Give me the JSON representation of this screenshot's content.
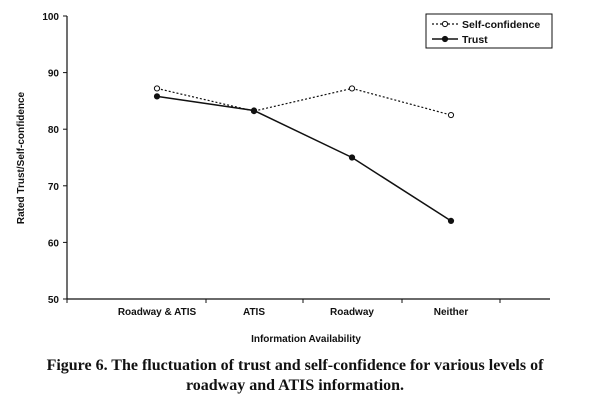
{
  "chart_data": {
    "type": "line",
    "categories": [
      "Roadway & ATIS",
      "ATIS",
      "Roadway",
      "Neither"
    ],
    "series": [
      {
        "name": "Self-confidence",
        "values": [
          87.2,
          83.2,
          87.2,
          82.5
        ],
        "style": "dotted",
        "marker": "open-circle",
        "color": "#111111"
      },
      {
        "name": "Trust",
        "values": [
          85.8,
          83.3,
          75.0,
          63.8
        ],
        "style": "solid",
        "marker": "filled-circle",
        "color": "#111111"
      }
    ],
    "xlabel": "Information Availability",
    "ylabel": "Rated Trust/Self-confidence",
    "ylim": [
      50,
      100
    ],
    "yticks": [
      50,
      60,
      70,
      80,
      90,
      100
    ],
    "grid": false,
    "legend_position": "top-right"
  },
  "caption": {
    "line1": "Figure 6.  The fluctuation of trust and self-confidence for various levels of",
    "line2": "roadway and ATIS information."
  }
}
